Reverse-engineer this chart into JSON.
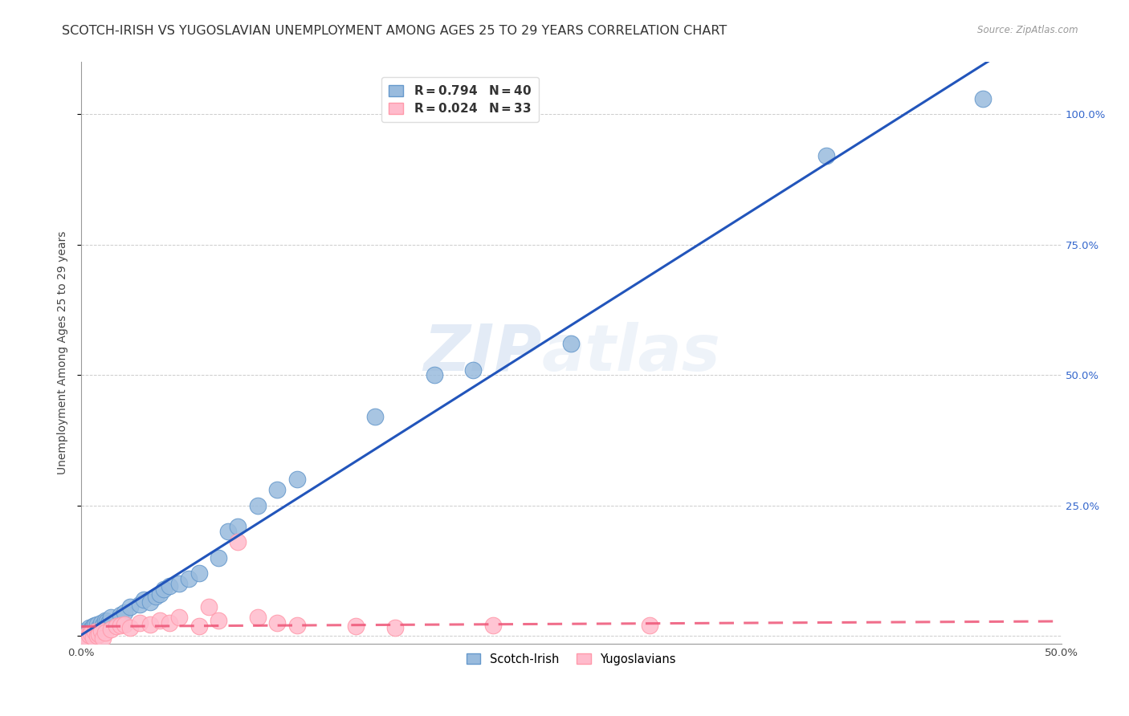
{
  "title": "SCOTCH-IRISH VS YUGOSLAVIAN UNEMPLOYMENT AMONG AGES 25 TO 29 YEARS CORRELATION CHART",
  "source": "Source: ZipAtlas.com",
  "ylabel": "Unemployment Among Ages 25 to 29 years",
  "xlim": [
    0.0,
    0.5
  ],
  "ylim": [
    -0.015,
    1.1
  ],
  "yticks": [
    0.0,
    0.25,
    0.5,
    0.75,
    1.0
  ],
  "ytick_labels": [
    "",
    "25.0%",
    "50.0%",
    "75.0%",
    "100.0%"
  ],
  "xticks": [
    0.0,
    0.1,
    0.2,
    0.3,
    0.4,
    0.5
  ],
  "blue_color": "#99BBDD",
  "blue_edge_color": "#6699CC",
  "pink_color": "#FFBBCC",
  "pink_edge_color": "#FF99AA",
  "blue_line_color": "#2255BB",
  "pink_line_color": "#EE5577",
  "scotch_irish_x": [
    0.001,
    0.002,
    0.003,
    0.004,
    0.005,
    0.006,
    0.007,
    0.008,
    0.009,
    0.01,
    0.011,
    0.012,
    0.013,
    0.014,
    0.015,
    0.02,
    0.022,
    0.025,
    0.03,
    0.032,
    0.035,
    0.038,
    0.04,
    0.042,
    0.045,
    0.05,
    0.055,
    0.06,
    0.07,
    0.075,
    0.08,
    0.09,
    0.1,
    0.11,
    0.15,
    0.18,
    0.2,
    0.25,
    0.38,
    0.46
  ],
  "scotch_irish_y": [
    0.005,
    0.01,
    0.008,
    0.015,
    0.012,
    0.018,
    0.02,
    0.022,
    0.015,
    0.025,
    0.02,
    0.03,
    0.028,
    0.025,
    0.035,
    0.04,
    0.045,
    0.055,
    0.06,
    0.07,
    0.065,
    0.075,
    0.08,
    0.09,
    0.095,
    0.1,
    0.11,
    0.12,
    0.15,
    0.2,
    0.21,
    0.25,
    0.28,
    0.3,
    0.42,
    0.5,
    0.51,
    0.56,
    0.92,
    1.03
  ],
  "yugoslavian_x": [
    0.001,
    0.002,
    0.003,
    0.004,
    0.005,
    0.006,
    0.007,
    0.008,
    0.009,
    0.01,
    0.011,
    0.012,
    0.015,
    0.018,
    0.02,
    0.022,
    0.025,
    0.03,
    0.035,
    0.04,
    0.045,
    0.05,
    0.06,
    0.065,
    0.07,
    0.08,
    0.09,
    0.1,
    0.11,
    0.14,
    0.16,
    0.21,
    0.29
  ],
  "yugoslavian_y": [
    -0.005,
    0.0,
    -0.008,
    0.002,
    0.005,
    -0.003,
    0.008,
    0.0,
    0.003,
    0.01,
    -0.005,
    0.006,
    0.012,
    0.018,
    0.02,
    0.022,
    0.015,
    0.025,
    0.022,
    0.03,
    0.025,
    0.035,
    0.018,
    0.055,
    0.03,
    0.18,
    0.035,
    0.025,
    0.02,
    0.018,
    0.015,
    0.02,
    0.02
  ],
  "watermark_zip": "ZIP",
  "watermark_atlas": "atlas",
  "title_fontsize": 11.5,
  "axis_label_fontsize": 10,
  "tick_fontsize": 9.5,
  "right_tick_color": "#3366CC"
}
